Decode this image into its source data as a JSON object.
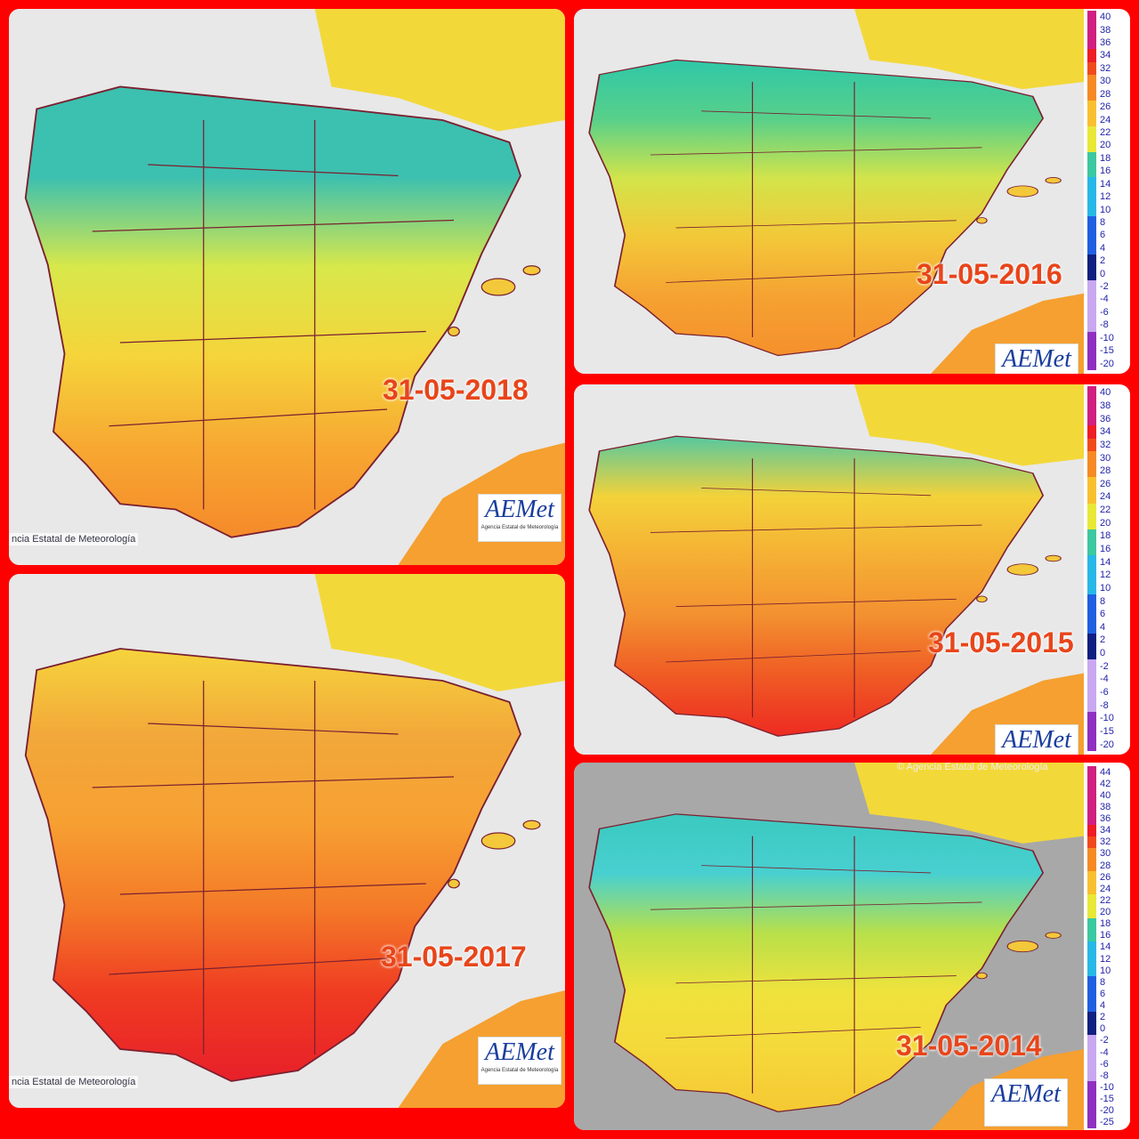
{
  "panels": [
    {
      "date": "31-05-2018",
      "credit": "ncia Estatal de Meteorología",
      "logo": "AEMet",
      "logo_sub": "Agencia Estatal de Meteorología"
    },
    {
      "date": "31-05-2017",
      "credit": "ncia Estatal de Meteorología",
      "logo": "AEMet",
      "logo_sub": "Agencia Estatal de Meteorología"
    },
    {
      "date": "31-05-2016",
      "logo": "AEMet",
      "legend": [
        40,
        38,
        36,
        34,
        32,
        30,
        28,
        26,
        24,
        22,
        20,
        18,
        16,
        14,
        12,
        10,
        8,
        6,
        4,
        2,
        0,
        -2,
        -4,
        -6,
        -8,
        -10,
        -15,
        -20
      ]
    },
    {
      "date": "31-05-2015",
      "logo": "AEMet",
      "legend": [
        40,
        38,
        36,
        34,
        32,
        30,
        28,
        26,
        24,
        22,
        20,
        18,
        16,
        14,
        12,
        10,
        8,
        6,
        4,
        2,
        0,
        -2,
        -4,
        -6,
        -8,
        -10,
        -15,
        -20
      ]
    },
    {
      "date": "31-05-2014",
      "credit": "© Agencia Estatal de Meteorología",
      "logo": "AEMet",
      "legend": [
        44,
        42,
        40,
        38,
        36,
        34,
        32,
        30,
        28,
        26,
        24,
        22,
        20,
        18,
        16,
        14,
        12,
        10,
        8,
        6,
        4,
        2,
        0,
        -2,
        -4,
        -6,
        -8,
        -10,
        -15,
        -20,
        -25
      ]
    }
  ]
}
